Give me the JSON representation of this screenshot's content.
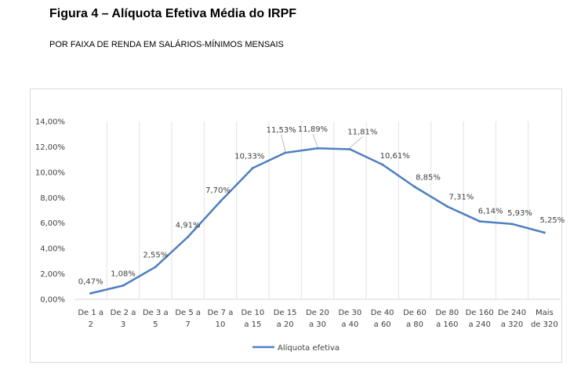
{
  "figure": {
    "title": "Figura 4 – Alíquota Efetiva Média do IRPF",
    "subtitle": "POR FAIXA DE RENDA EM SALÁRIOS-MÍNIMOS MENSAIS"
  },
  "chart_data": {
    "type": "line",
    "title": "",
    "xlabel": "",
    "ylabel": "",
    "categories": [
      [
        "De 1 a",
        "2"
      ],
      [
        "De 2 a",
        "3"
      ],
      [
        "De 3 a",
        "5"
      ],
      [
        "De 5 a",
        "7"
      ],
      [
        "De 7 a",
        "10"
      ],
      [
        "De 10",
        "a 15"
      ],
      [
        "De 15",
        "a 20"
      ],
      [
        "De 20",
        "a 30"
      ],
      [
        "De 30",
        "a 40"
      ],
      [
        "De 40",
        "a 60"
      ],
      [
        "De 60",
        "a 80"
      ],
      [
        "De 80",
        "a 160"
      ],
      [
        "De 160",
        "a 240"
      ],
      [
        "De 240",
        "a 320"
      ],
      [
        "Mais",
        "de 320"
      ]
    ],
    "series": [
      {
        "name": "Alíquota efetiva",
        "values": [
          0.47,
          1.08,
          2.55,
          4.91,
          7.7,
          10.33,
          11.53,
          11.89,
          11.81,
          10.61,
          8.85,
          7.31,
          6.14,
          5.93,
          5.25
        ],
        "labels": [
          "0,47%",
          "1,08%",
          "2,55%",
          "4,91%",
          "7,70%",
          "10,33%",
          "11,53%",
          "11,89%",
          "11,81%",
          "10,61%",
          "8,85%",
          "7,31%",
          "6,14%",
          "5,93%",
          "5,25%"
        ],
        "color": "#4e7fbf"
      }
    ],
    "yticks": [
      "0,00%",
      "2,00%",
      "4,00%",
      "6,00%",
      "8,00%",
      "10,00%",
      "12,00%",
      "14,00%"
    ],
    "ylim": [
      0,
      14
    ],
    "grid": "vertical",
    "legend": "bottom-center"
  }
}
